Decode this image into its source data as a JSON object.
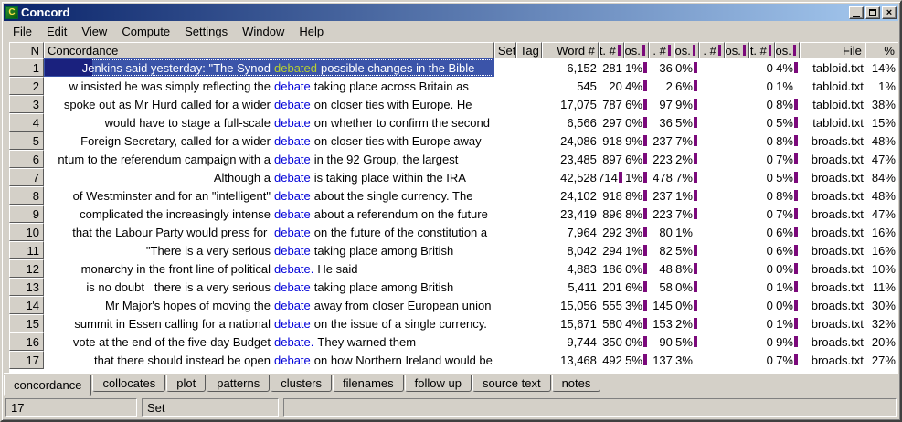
{
  "window": {
    "title": "Concord",
    "icon_letter": "C"
  },
  "titlebar_buttons": {
    "minimize": "minimize",
    "maximize": "maximize",
    "close": "close"
  },
  "menu": {
    "items": [
      "File",
      "Edit",
      "View",
      "Compute",
      "Settings",
      "Window",
      "Help"
    ]
  },
  "colors": {
    "chrome": "#D4D0C8",
    "titlebar_gradient_start": "#0A246A",
    "titlebar_gradient_end": "#A6CAF0",
    "selection_blue": "#3B54A9",
    "selection_navy_block": "#1A217E",
    "keyword_blue": "#0000D8",
    "keyword_selected_green": "#B8D232",
    "position_bar_purple": "#7B0A7B"
  },
  "table": {
    "headers": {
      "n": "N",
      "concordance": "Concordance",
      "set": "Set",
      "tag": "Tag",
      "word": "Word #",
      "sent_num": "t. #",
      "sent_pos": "os.",
      "para_num": ". #",
      "para_pos": "os.",
      "head_num": ". #",
      "head_pos": "os.",
      "sect_num": "t. #",
      "sect_pos": "os.",
      "file": "File",
      "pct": "%"
    },
    "rows": [
      {
        "n": "1",
        "sel": true,
        "before": "Jenkins said yesterday: \"The Synod",
        "kw": "debated",
        "after": "possible changes in the Bible",
        "word": "6,152",
        "sent": "281",
        "sent_bar": false,
        "sp": "1%",
        "sp_bar": true,
        "para": "36",
        "pp": "0%",
        "pp_bar": true,
        "head": "",
        "hp": "",
        "sect": "0",
        "xp": "4%",
        "xp_bar": true,
        "file": "tabloid.txt",
        "pct": "14%"
      },
      {
        "n": "2",
        "sel": false,
        "before": "w insisted he was simply reflecting the",
        "kw": "debate",
        "after": "taking place across Britain as",
        "word": "545",
        "sent": "20",
        "sent_bar": false,
        "sp": "4%",
        "sp_bar": true,
        "para": "2",
        "pp": "6%",
        "pp_bar": true,
        "head": "",
        "hp": "",
        "sect": "0",
        "xp": "1%",
        "xp_bar": false,
        "file": "tabloid.txt",
        "pct": "1%"
      },
      {
        "n": "3",
        "sel": false,
        "before": "spoke out as Mr Hurd called for a wider",
        "kw": "debate",
        "after": "on closer ties with Europe. He",
        "word": "17,075",
        "sent": "787",
        "sent_bar": false,
        "sp": "6%",
        "sp_bar": true,
        "para": "97",
        "pp": "9%",
        "pp_bar": true,
        "head": "",
        "hp": "",
        "sect": "0",
        "xp": "8%",
        "xp_bar": true,
        "file": "tabloid.txt",
        "pct": "38%"
      },
      {
        "n": "4",
        "sel": false,
        "before": "would have to stage a full-scale",
        "kw": "debate",
        "after": "on whether to confirm the second",
        "word": "6,566",
        "sent": "297",
        "sent_bar": false,
        "sp": "0%",
        "sp_bar": true,
        "para": "36",
        "pp": "5%",
        "pp_bar": true,
        "head": "",
        "hp": "",
        "sect": "0",
        "xp": "5%",
        "xp_bar": true,
        "file": "tabloid.txt",
        "pct": "15%"
      },
      {
        "n": "5",
        "sel": false,
        "before": "Foreign Secretary, called for a wider",
        "kw": "debate",
        "after": "on closer ties with Europe away",
        "word": "24,086",
        "sent": "918",
        "sent_bar": false,
        "sp": "9%",
        "sp_bar": true,
        "para": "237",
        "pp": "7%",
        "pp_bar": true,
        "head": "",
        "hp": "",
        "sect": "0",
        "xp": "8%",
        "xp_bar": true,
        "file": "broads.txt",
        "pct": "48%"
      },
      {
        "n": "6",
        "sel": false,
        "before": "ntum to the referendum campaign with a",
        "kw": "debate",
        "after": "in the 92 Group, the largest",
        "word": "23,485",
        "sent": "897",
        "sent_bar": false,
        "sp": "6%",
        "sp_bar": true,
        "para": "223",
        "pp": "2%",
        "pp_bar": true,
        "head": "",
        "hp": "",
        "sect": "0",
        "xp": "7%",
        "xp_bar": true,
        "file": "broads.txt",
        "pct": "47%"
      },
      {
        "n": "7",
        "sel": false,
        "before": "Although a",
        "kw": "debate",
        "after": "is taking place within the IRA",
        "word": "42,528",
        "sent": "714",
        "sent_bar": true,
        "sp": "1%",
        "sp_bar": true,
        "para": "478",
        "pp": "7%",
        "pp_bar": true,
        "head": "",
        "hp": "",
        "sect": "0",
        "xp": "5%",
        "xp_bar": true,
        "file": "broads.txt",
        "pct": "84%"
      },
      {
        "n": "8",
        "sel": false,
        "before": "of Westminster and for an \"intelligent\"",
        "kw": "debate",
        "after": "about the single currency. The",
        "word": "24,102",
        "sent": "918",
        "sent_bar": false,
        "sp": "8%",
        "sp_bar": true,
        "para": "237",
        "pp": "1%",
        "pp_bar": true,
        "head": "",
        "hp": "",
        "sect": "0",
        "xp": "8%",
        "xp_bar": true,
        "file": "broads.txt",
        "pct": "48%"
      },
      {
        "n": "9",
        "sel": false,
        "before": "complicated the increasingly intense",
        "kw": "debate",
        "after": "about a referendum on the future",
        "word": "23,419",
        "sent": "896",
        "sent_bar": false,
        "sp": "8%",
        "sp_bar": true,
        "para": "223",
        "pp": "7%",
        "pp_bar": true,
        "head": "",
        "hp": "",
        "sect": "0",
        "xp": "7%",
        "xp_bar": true,
        "file": "broads.txt",
        "pct": "47%"
      },
      {
        "n": "10",
        "sel": false,
        "before": "that the Labour Party would press for ",
        "kw": "debate",
        "after": "on the future of the constitution a",
        "word": "7,964",
        "sent": "292",
        "sent_bar": false,
        "sp": "3%",
        "sp_bar": true,
        "para": "80",
        "pp": "1%",
        "pp_bar": false,
        "head": "",
        "hp": "",
        "sect": "0",
        "xp": "6%",
        "xp_bar": true,
        "file": "broads.txt",
        "pct": "16%"
      },
      {
        "n": "11",
        "sel": false,
        "before": "\"There is a very serious",
        "kw": "debate",
        "after": "taking place among British",
        "word": "8,042",
        "sent": "294",
        "sent_bar": false,
        "sp": "1%",
        "sp_bar": true,
        "para": "82",
        "pp": "5%",
        "pp_bar": true,
        "head": "",
        "hp": "",
        "sect": "0",
        "xp": "6%",
        "xp_bar": true,
        "file": "broads.txt",
        "pct": "16%"
      },
      {
        "n": "12",
        "sel": false,
        "before": "monarchy in the front line of political",
        "kw": "debate.",
        "after": "He said",
        "word": "4,883",
        "sent": "186",
        "sent_bar": false,
        "sp": "0%",
        "sp_bar": true,
        "para": "48",
        "pp": "8%",
        "pp_bar": true,
        "head": "",
        "hp": "",
        "sect": "0",
        "xp": "0%",
        "xp_bar": true,
        "file": "broads.txt",
        "pct": "10%"
      },
      {
        "n": "13",
        "sel": false,
        "before": "is no doubt   there is a very serious",
        "kw": "debate",
        "after": "taking place among British",
        "word": "5,411",
        "sent": "201",
        "sent_bar": false,
        "sp": "6%",
        "sp_bar": true,
        "para": "58",
        "pp": "0%",
        "pp_bar": true,
        "head": "",
        "hp": "",
        "sect": "0",
        "xp": "1%",
        "xp_bar": true,
        "file": "broads.txt",
        "pct": "11%"
      },
      {
        "n": "14",
        "sel": false,
        "before": "Mr Major's hopes of moving the",
        "kw": "debate",
        "after": "away from closer European union",
        "word": "15,056",
        "sent": "555",
        "sent_bar": false,
        "sp": "3%",
        "sp_bar": true,
        "para": "145",
        "pp": "0%",
        "pp_bar": true,
        "head": "",
        "hp": "",
        "sect": "0",
        "xp": "0%",
        "xp_bar": true,
        "file": "broads.txt",
        "pct": "30%"
      },
      {
        "n": "15",
        "sel": false,
        "before": "summit in Essen calling for a national",
        "kw": "debate",
        "after": "on the issue of a single currency.",
        "word": "15,671",
        "sent": "580",
        "sent_bar": false,
        "sp": "4%",
        "sp_bar": true,
        "para": "153",
        "pp": "2%",
        "pp_bar": true,
        "head": "",
        "hp": "",
        "sect": "0",
        "xp": "1%",
        "xp_bar": true,
        "file": "broads.txt",
        "pct": "32%"
      },
      {
        "n": "16",
        "sel": false,
        "before": "vote at the end of the five-day Budget",
        "kw": "debate.",
        "after": "They warned them",
        "word": "9,744",
        "sent": "350",
        "sent_bar": false,
        "sp": "0%",
        "sp_bar": true,
        "para": "90",
        "pp": "5%",
        "pp_bar": true,
        "head": "",
        "hp": "",
        "sect": "0",
        "xp": "9%",
        "xp_bar": true,
        "file": "broads.txt",
        "pct": "20%"
      },
      {
        "n": "17",
        "sel": false,
        "before": "that there should instead be open",
        "kw": "debate",
        "after": "on how Northern Ireland would be",
        "word": "13,468",
        "sent": "492",
        "sent_bar": false,
        "sp": "5%",
        "sp_bar": true,
        "para": "137",
        "pp": "3%",
        "pp_bar": false,
        "head": "",
        "hp": "",
        "sect": "0",
        "xp": "7%",
        "xp_bar": true,
        "file": "broads.txt",
        "pct": "27%"
      }
    ]
  },
  "tabs": {
    "active": 0,
    "items": [
      "concordance",
      "collocates",
      "plot",
      "patterns",
      "clusters",
      "filenames",
      "follow up",
      "source text",
      "notes"
    ]
  },
  "statusbar": {
    "row_count": "17",
    "panel2": "Set",
    "panel3": ""
  }
}
